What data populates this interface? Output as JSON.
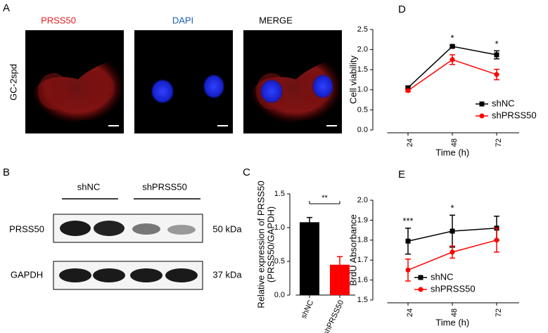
{
  "panel_a": {
    "letter": "A",
    "labels": [
      "PRSS50",
      "DAPI",
      "MERGE"
    ],
    "row_label": "GC-2spd"
  },
  "panel_b": {
    "letter": "B",
    "groups": [
      "shNC",
      "shPRSS50"
    ],
    "rows": [
      {
        "name": "PRSS50",
        "size": "50 kDa"
      },
      {
        "name": "GAPDH",
        "size": "37 kDa"
      }
    ]
  },
  "chart_data": [
    {
      "type": "bar",
      "panel": "C",
      "ylabel": [
        "Relative expression of PRSS50",
        "(PRSS50/GAPDH)"
      ],
      "categories": [
        "shNC",
        "shPRSS50"
      ],
      "values": [
        1.08,
        0.45
      ],
      "errors": [
        0.07,
        0.12
      ],
      "colors": [
        "#000000",
        "#ff0000"
      ],
      "ylim": [
        0,
        1.5
      ],
      "yticks": [
        {
          "value": 0,
          "label": "0.0"
        },
        0.5,
        {
          "value": 1,
          "label": "1.0"
        },
        1.5
      ],
      "annotations": [
        {
          "label": "**",
          "from": "shNC",
          "to": "shPRSS50"
        }
      ]
    },
    {
      "type": "line",
      "panel": "D",
      "ylabel": "Cell viability",
      "xlabel": "Time (h)",
      "categories": [
        "24",
        "48",
        "72"
      ],
      "series": [
        {
          "name": "shNC",
          "color": "#000000",
          "marker": "square",
          "values": [
            1.05,
            2.08,
            1.87
          ],
          "errors": [
            0.03,
            0.03,
            0.1
          ]
        },
        {
          "name": "shPRSS50",
          "color": "#ff0000",
          "marker": "circle",
          "values": [
            0.98,
            1.75,
            1.38
          ],
          "errors": [
            0.03,
            0.12,
            0.13
          ]
        }
      ],
      "ylim": [
        0,
        2.5
      ],
      "yticks": [
        {
          "value": 0,
          "label": "0.0"
        },
        0.5,
        {
          "value": 1,
          "label": "1.0"
        },
        1.5,
        {
          "value": 2,
          "label": "2.0"
        },
        2.5
      ],
      "annotations": [
        {
          "label": "*",
          "x": "48"
        },
        {
          "label": "*",
          "x": "72"
        }
      ]
    },
    {
      "type": "line",
      "panel": "E",
      "ylabel": "BrdU Absorbance",
      "xlabel": "Time (h)",
      "categories": [
        "24",
        "48",
        "72"
      ],
      "series": [
        {
          "name": "shNC",
          "color": "#000000",
          "marker": "square",
          "values": [
            1.795,
            1.845,
            1.86
          ],
          "errors": [
            0.065,
            0.08,
            0.06
          ]
        },
        {
          "name": "shPRSS50",
          "color": "#ff0000",
          "marker": "circle",
          "values": [
            1.65,
            1.74,
            1.8
          ],
          "errors": [
            0.055,
            0.03,
            0.06
          ]
        }
      ],
      "ylim": [
        1.5,
        2.0
      ],
      "yticks": [
        1.5,
        1.6,
        1.7,
        1.8,
        1.9,
        {
          "value": 2,
          "label": "2.0"
        }
      ],
      "annotations": [
        {
          "label": "***",
          "x": "24"
        },
        {
          "label": "*",
          "x": "48"
        }
      ]
    }
  ]
}
